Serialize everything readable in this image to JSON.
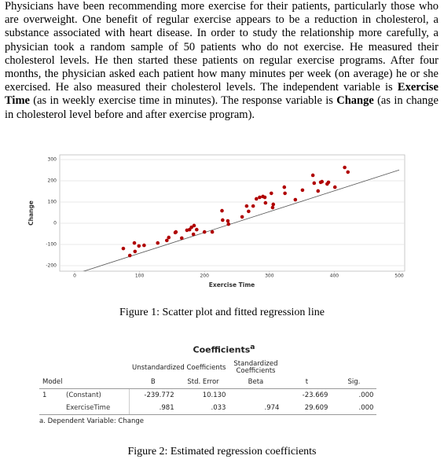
{
  "paragraph": [
    {
      "text": "Physicians have been recommending more exercise for their patients, particularly those who are overweight. One benefit of regular exercise appears to be a reduction in cholesterol, a substance associated with heart disease. In order to study the relationship more carefully, a physician took a random sample of 50 patients who do not exercise. He measured their cholesterol levels. He then started these patients on regular exercise programs. After four months, the physician asked each patient how many minutes per week (on average) he or she exercised. He also measured their cholesterol levels. The independent variable is ",
      "bold": false
    },
    {
      "text": "Exercise Time",
      "bold": true
    },
    {
      "text": " (as in weekly exercise time in minutes). The response variable is ",
      "bold": false
    },
    {
      "text": "Change",
      "bold": true
    },
    {
      "text": " (as in change in cholesterol level before and after exercise program).",
      "bold": false
    }
  ],
  "chart_data": {
    "type": "scatter",
    "x_label": "Exercise Time",
    "y_label": "Change",
    "color": "#b00000",
    "grid": true,
    "x": [
      75,
      85,
      92,
      93,
      99,
      107,
      128,
      142,
      145,
      155,
      156,
      165,
      173,
      177,
      180,
      183,
      184,
      188,
      200,
      212,
      227,
      228,
      236,
      237,
      258,
      265,
      268,
      275,
      280,
      285,
      290,
      293,
      294,
      303,
      305,
      306,
      323,
      324,
      340,
      351,
      367,
      369,
      375,
      379,
      381,
      389,
      391,
      401,
      416,
      421
    ],
    "values": [
      -119,
      -152,
      -93,
      -133,
      -107,
      -104,
      -93,
      -81,
      -67,
      -44,
      -41,
      -70,
      -33,
      -30,
      -19,
      -52,
      -11,
      -30,
      -41,
      -41,
      59,
      15,
      11,
      -4,
      30,
      81,
      56,
      81,
      115,
      122,
      126,
      122,
      96,
      141,
      74,
      89,
      170,
      141,
      111,
      156,
      226,
      189,
      152,
      193,
      196,
      185,
      193,
      170,
      263,
      241
    ],
    "xlim": [
      0,
      500
    ],
    "xticks": [
      0,
      100,
      200,
      300,
      400,
      500
    ],
    "ylim": [
      -200,
      300
    ],
    "yticks": [
      -200,
      -100,
      0,
      100,
      200,
      300
    ]
  },
  "figure1_caption": "Figure 1: Scatter plot and fitted regression line",
  "table": {
    "title": "Coefficients",
    "title_note": "a",
    "group_headers": [
      "Unstandardized Coefficients",
      "Standardized Coefficients"
    ],
    "headers": [
      "Model",
      "B",
      "Std. Error",
      "Beta",
      "t",
      "Sig."
    ],
    "rows": [
      [
        "1",
        "(Constant)",
        "-239.772",
        "10.130",
        null,
        "-23.669",
        ".000"
      ],
      [
        null,
        "ExerciseTime",
        ".981",
        ".033",
        ".974",
        "29.609",
        ".000"
      ]
    ],
    "footnote": "a. Dependent Variable: Change"
  },
  "figure2_caption": "Figure 2: Estimated regression coefficients"
}
